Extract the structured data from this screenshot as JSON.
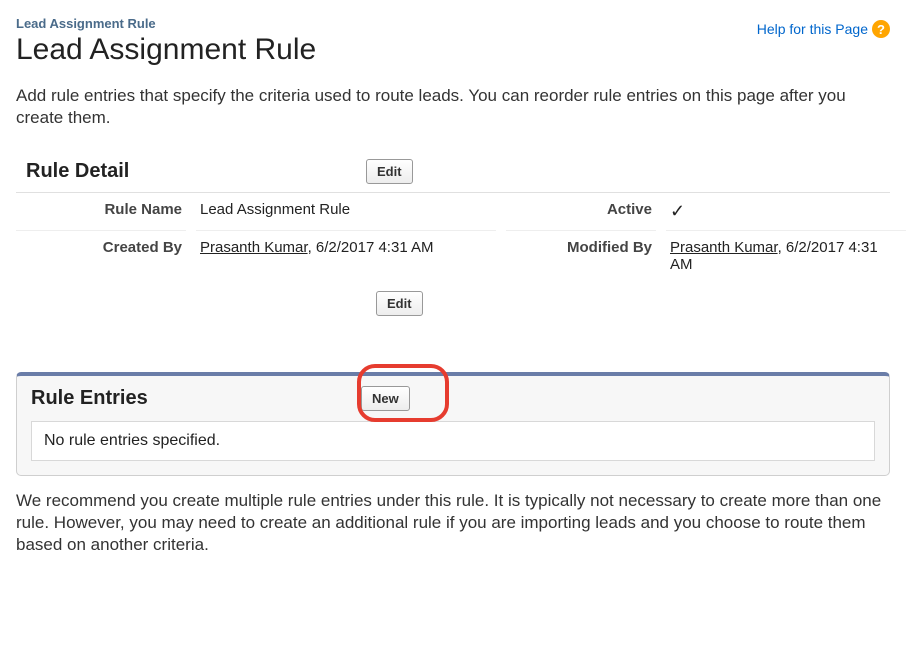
{
  "header": {
    "breadcrumb": "Lead Assignment Rule",
    "title": "Lead Assignment Rule",
    "help_link": "Help for this Page",
    "help_icon": "?",
    "description": "Add rule entries that specify the criteria used to route leads. You can reorder rule entries on this page after you create them."
  },
  "rule_detail": {
    "section_title": "Rule Detail",
    "edit_label": "Edit",
    "fields": {
      "rule_name": {
        "label": "Rule Name",
        "value": "Lead Assignment Rule"
      },
      "active": {
        "label": "Active",
        "checked": true
      },
      "created_by": {
        "label": "Created By",
        "user": "Prasanth Kumar",
        "datetime": "6/2/2017 4:31 AM"
      },
      "modified_by": {
        "label": "Modified By",
        "user": "Prasanth Kumar",
        "datetime": "6/2/2017 4:31 AM"
      }
    }
  },
  "rule_entries": {
    "section_title": "Rule Entries",
    "new_label": "New",
    "empty_message": "No rule entries specified.",
    "highlight_new_button": true
  },
  "footer": {
    "text": "We recommend you create multiple rule entries under this rule. It is typically not necessary to create more than one rule. However, you may need to create an additional rule if you are importing leads and you choose to route them based on another criteria."
  },
  "colors": {
    "link": "#0066cc",
    "help_icon_bg": "#ffa500",
    "entries_border_top": "#6a7da8",
    "highlight_ring": "#e63c2f"
  }
}
